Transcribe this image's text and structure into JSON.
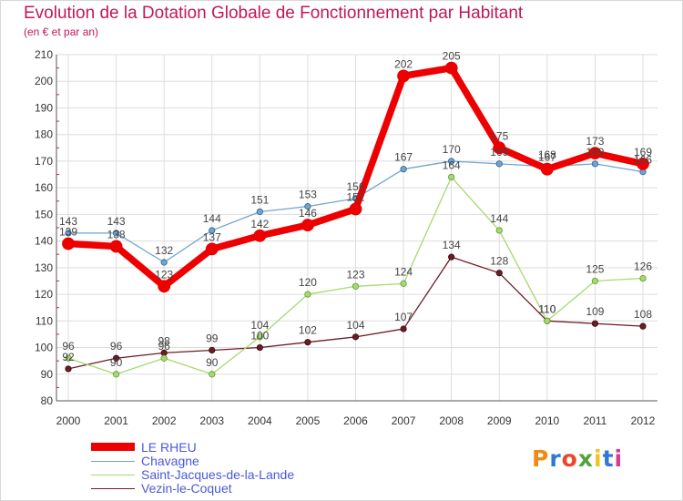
{
  "chart_data": {
    "type": "line",
    "title": "Evolution de la Dotation Globale de Fonctionnement par Habitant",
    "subtitle": "(en € et par an)",
    "x": [
      "2000",
      "2001",
      "2002",
      "2003",
      "2004",
      "2005",
      "2006",
      "2007",
      "2008",
      "2009",
      "2010",
      "2011",
      "2012"
    ],
    "ylim": [
      80,
      210
    ],
    "yticks": [
      80,
      90,
      100,
      110,
      120,
      130,
      140,
      150,
      160,
      170,
      180,
      190,
      200,
      210
    ],
    "grid": true,
    "legend_position": "bottom-left",
    "series": [
      {
        "name": "Vezin-le-Coquet",
        "color": "#6b1c26",
        "values": [
          92,
          96,
          98,
          99,
          100,
          102,
          104,
          107,
          134,
          128,
          110,
          109,
          108
        ]
      },
      {
        "name": "Saint-Jacques-de-la-Lande",
        "color": "#a8d870",
        "values": [
          96,
          90,
          96,
          90,
          104,
          120,
          123,
          124,
          164,
          144,
          110,
          125,
          126
        ]
      },
      {
        "name": "Chavagne",
        "color": "#6fa5d0",
        "values": [
          143,
          143,
          132,
          144,
          151,
          153,
          156,
          167,
          170,
          169,
          168,
          169,
          166
        ]
      },
      {
        "name": "LE RHEU",
        "color": "#ee0000",
        "values": [
          139,
          138,
          123,
          137,
          142,
          146,
          152,
          202,
          205,
          175,
          167,
          173,
          169
        ]
      }
    ]
  },
  "brand": {
    "text": "Proxiti"
  }
}
